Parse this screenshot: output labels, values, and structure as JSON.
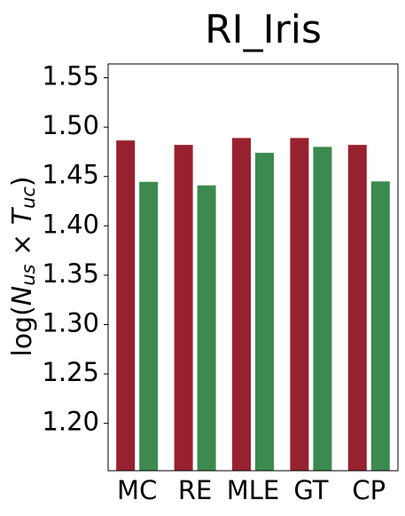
{
  "chart_data": {
    "type": "bar",
    "title": "RI_Iris",
    "ylabel": [
      "log(",
      "N",
      "us",
      " × ",
      "T",
      "uc",
      ")"
    ],
    "categories": [
      "MC",
      "RE",
      "MLE",
      "GT",
      "CP"
    ],
    "series": [
      {
        "color": "#98212f",
        "values": [
          1.4865,
          1.482,
          1.489,
          1.489,
          1.482
        ]
      },
      {
        "color": "#3c8a4f",
        "values": [
          1.4446,
          1.441,
          1.474,
          1.48,
          1.445
        ]
      }
    ],
    "ylim": [
      1.152,
      1.564
    ],
    "yticks": [
      1.2,
      1.25,
      1.3,
      1.35,
      1.4,
      1.45,
      1.5,
      1.55
    ],
    "grid": false
  }
}
